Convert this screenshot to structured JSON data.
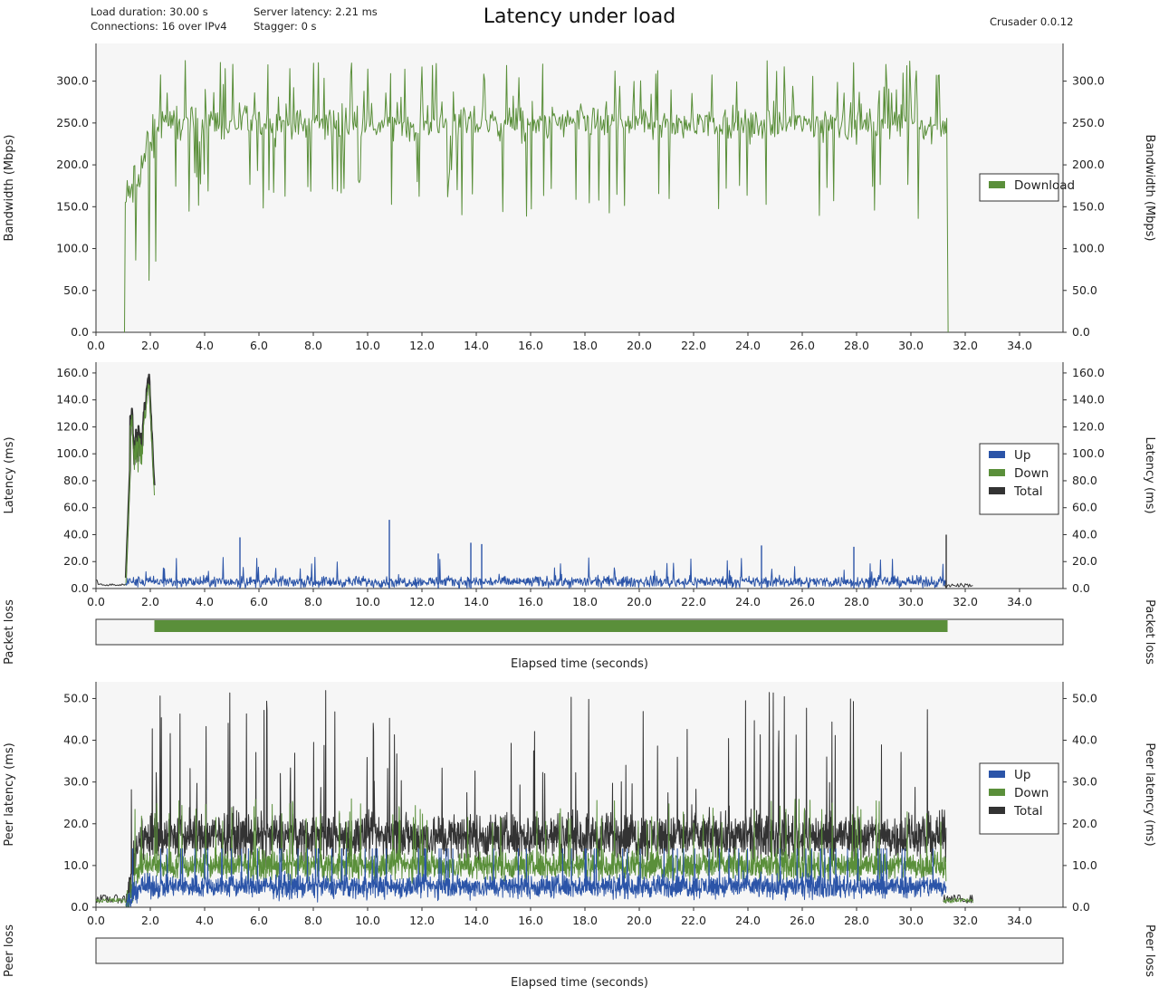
{
  "header": {
    "title": "Latency under load",
    "load_duration": "Load duration: 30.00 s",
    "connections": "Connections: 16 over IPv4",
    "server_latency": "Server latency: 2.21 ms",
    "stagger": "Stagger: 0 s",
    "version": "Crusader 0.0.12"
  },
  "colors": {
    "up": "#2b54a8",
    "down": "#5a8f3a",
    "total": "#333333",
    "plot_bg": "#f6f6f6"
  },
  "chart_data": [
    {
      "type": "line",
      "id": "bandwidth",
      "ylabel": "Bandwidth (Mbps)",
      "xlim": [
        0,
        35.6
      ],
      "ylim": [
        0,
        345
      ],
      "yticks": [
        "0.0",
        "50.0",
        "100.0",
        "150.0",
        "200.0",
        "250.0",
        "300.0"
      ],
      "xticks": [
        "0.0",
        "2.0",
        "4.0",
        "6.0",
        "8.0",
        "10.0",
        "12.0",
        "14.0",
        "16.0",
        "18.0",
        "20.0",
        "22.0",
        "24.0",
        "26.0",
        "28.0",
        "30.0",
        "32.0",
        "34.0"
      ],
      "legend": [
        "Download"
      ],
      "legend_position": "right",
      "series": [
        {
          "name": "Download",
          "color": "#5a8f3a",
          "profile": {
            "start": 1.05,
            "ramp_end": 2.3,
            "end": 31.35,
            "level": 250,
            "noise": 30,
            "spike_min": 135,
            "spike_max": 325
          }
        }
      ]
    },
    {
      "type": "line",
      "id": "latency",
      "ylabel": "Latency (ms)",
      "xlim": [
        0,
        35.6
      ],
      "ylim": [
        0,
        168
      ],
      "yticks": [
        "0.0",
        "20.0",
        "40.0",
        "60.0",
        "80.0",
        "100.0",
        "120.0",
        "140.0",
        "160.0"
      ],
      "xticks": [
        "0.0",
        "2.0",
        "4.0",
        "6.0",
        "8.0",
        "10.0",
        "12.0",
        "14.0",
        "16.0",
        "18.0",
        "20.0",
        "22.0",
        "24.0",
        "26.0",
        "28.0",
        "30.0",
        "32.0",
        "34.0"
      ],
      "legend": [
        "Up",
        "Down",
        "Total"
      ],
      "legend_position": "right",
      "series": [
        {
          "name": "Up",
          "color": "#2b54a8",
          "profile": {
            "start": 1.1,
            "end": 31.3,
            "level": 5,
            "noise": 6,
            "spikes": [
              [
                5.3,
                38
              ],
              [
                10.8,
                51
              ],
              [
                12.6,
                26
              ],
              [
                13.8,
                34
              ],
              [
                14.2,
                33
              ],
              [
                24.5,
                32
              ],
              [
                27.9,
                31
              ]
            ]
          }
        },
        {
          "name": "Down",
          "color": "#5a8f3a",
          "profile": {
            "burst_start": 1.1,
            "burst_end": 2.15,
            "peak": 162
          }
        },
        {
          "name": "Total",
          "color": "#333333",
          "profile": {
            "burst_start": 1.1,
            "burst_end": 2.15,
            "peak": 162,
            "idle_level": 2,
            "end": 32.3
          }
        }
      ]
    },
    {
      "type": "bar",
      "id": "packet-loss",
      "label": "Packet loss",
      "band": {
        "start": 2.15,
        "end": 31.35,
        "color": "#5a8f3a"
      }
    },
    {
      "type": "line",
      "id": "peer-latency",
      "ylabel": "Peer latency (ms)",
      "xlim": [
        0,
        35.6
      ],
      "ylim": [
        0,
        54
      ],
      "yticks": [
        "0.0",
        "10.0",
        "20.0",
        "30.0",
        "40.0",
        "50.0"
      ],
      "xticks": [
        "0.0",
        "2.0",
        "4.0",
        "6.0",
        "8.0",
        "10.0",
        "12.0",
        "14.0",
        "16.0",
        "18.0",
        "20.0",
        "22.0",
        "24.0",
        "26.0",
        "28.0",
        "30.0",
        "32.0",
        "34.0"
      ],
      "legend": [
        "Up",
        "Down",
        "Total"
      ],
      "legend_position": "right",
      "series": [
        {
          "name": "Total",
          "color": "#333333",
          "profile": {
            "start": 1.1,
            "end": 31.3,
            "level": 17,
            "noise": 8,
            "max": 52,
            "idle_level": 2
          }
        },
        {
          "name": "Down",
          "color": "#5a8f3a",
          "profile": {
            "start": 1.1,
            "end": 31.3,
            "level": 10,
            "noise": 5,
            "idle_level": 1.5
          }
        },
        {
          "name": "Up",
          "color": "#2b54a8",
          "profile": {
            "start": 1.1,
            "end": 31.3,
            "level": 5,
            "noise": 4
          }
        }
      ]
    },
    {
      "type": "bar",
      "id": "peer-loss",
      "label": "Peer loss",
      "band": null
    }
  ],
  "xlabel": "Elapsed time (seconds)"
}
